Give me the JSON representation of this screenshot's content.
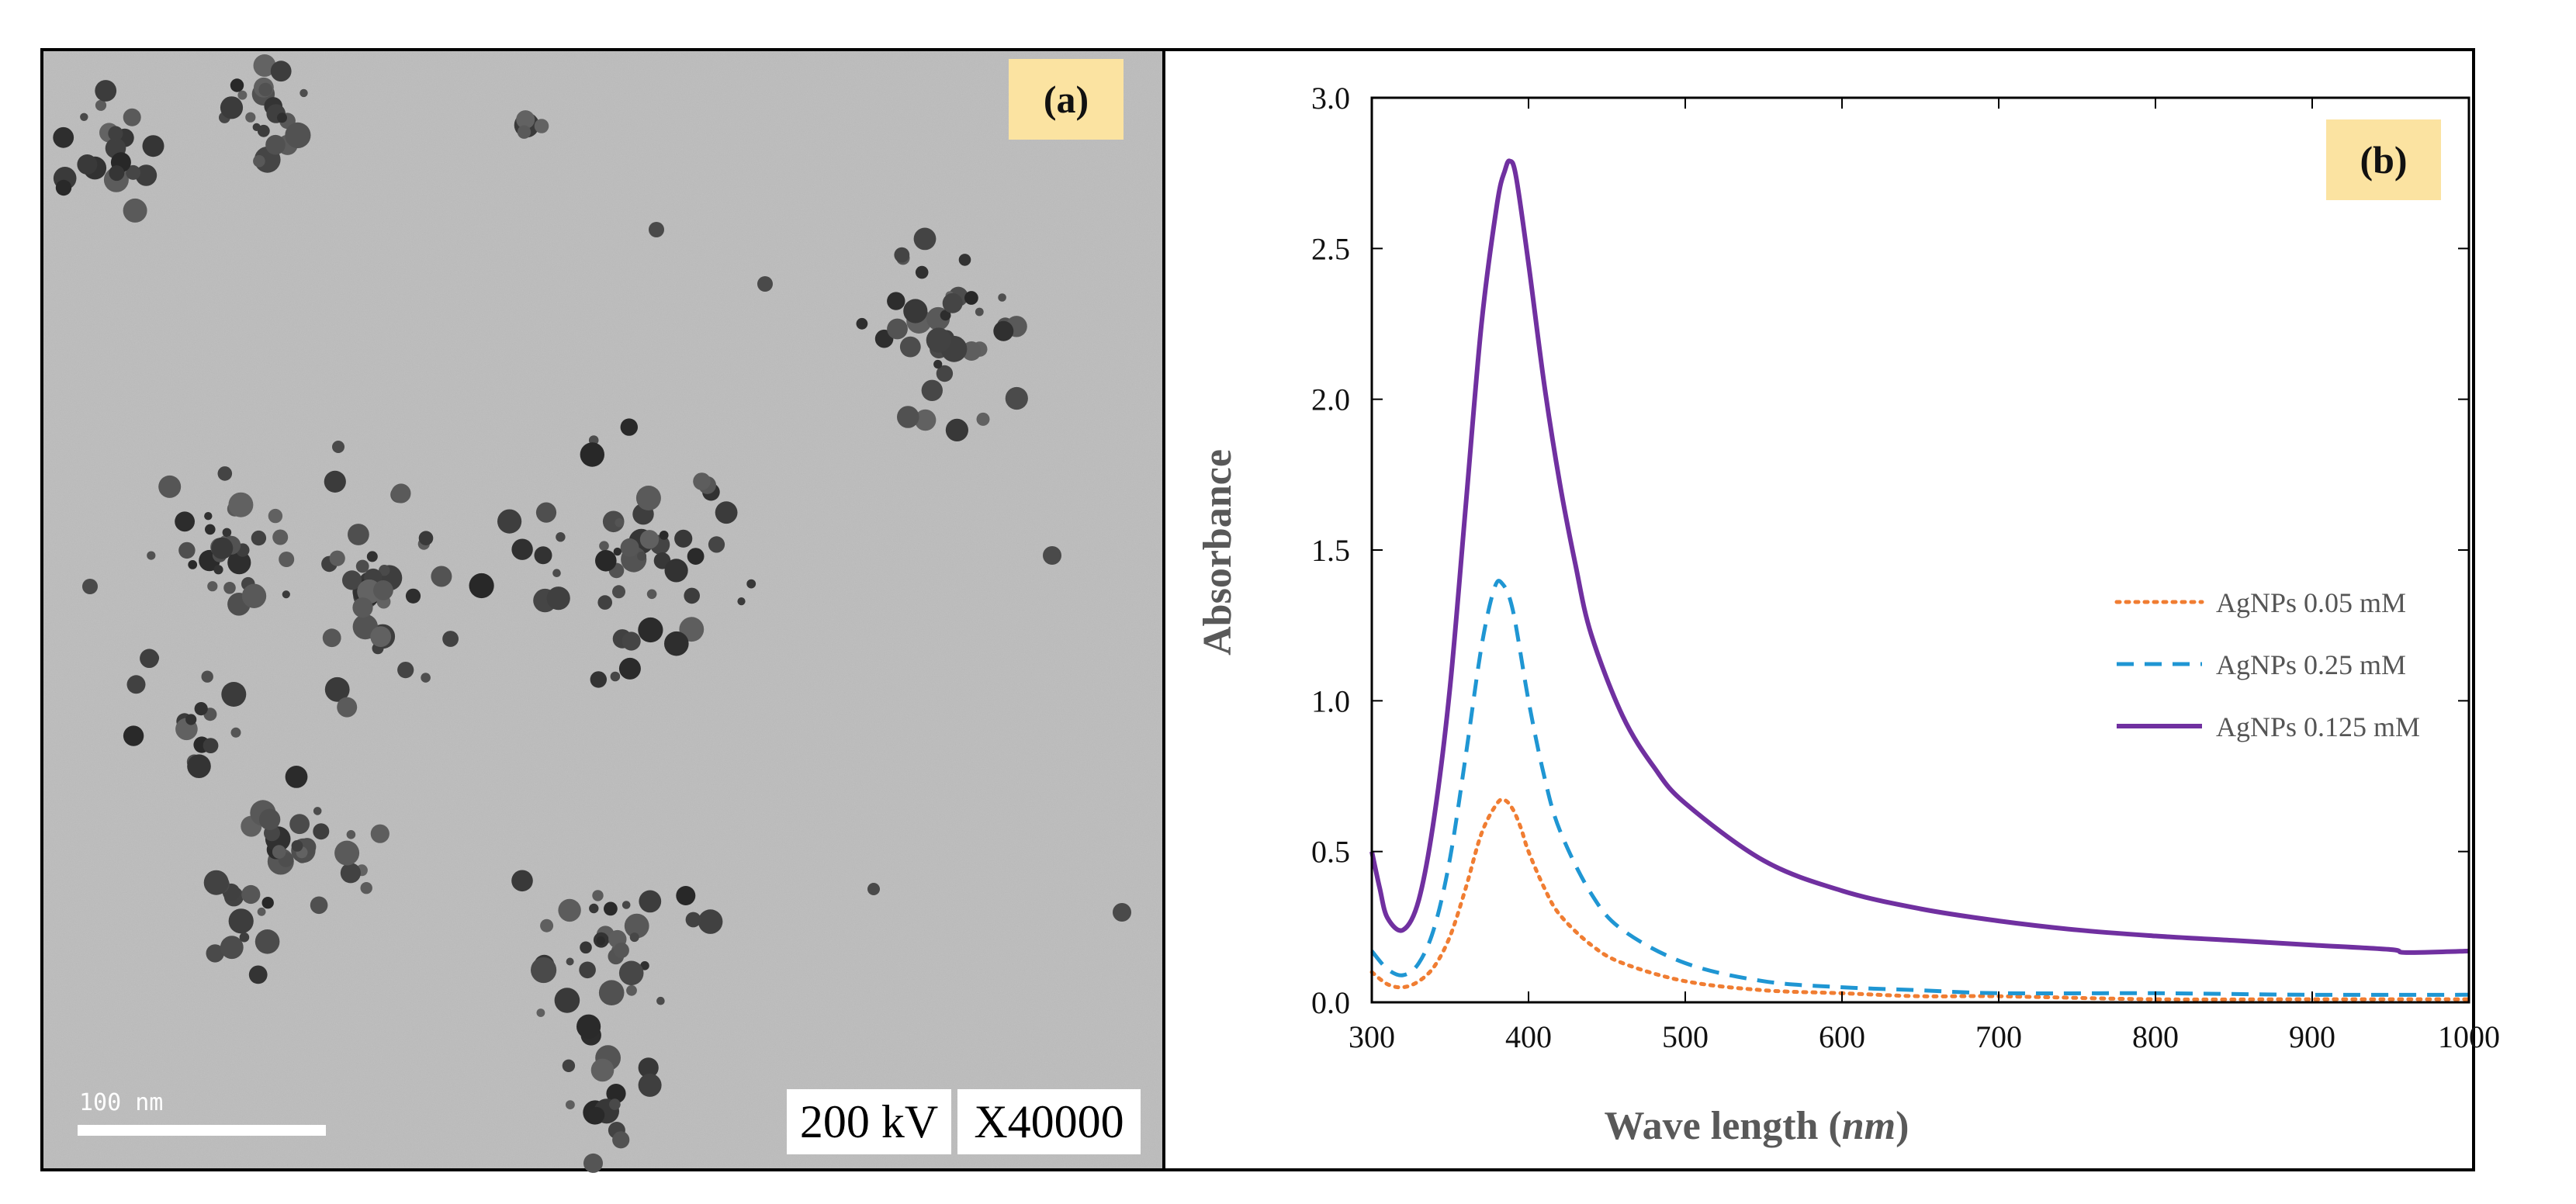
{
  "panel_a": {
    "label": "(a)",
    "scale_bar_text": "100 nm",
    "voltage": "200 kV",
    "magnification": "X40000"
  },
  "panel_b": {
    "label": "(b)"
  },
  "colors": {
    "background_tem": "#b6b6b6",
    "label_bg": "#fbe3a1",
    "series_005": "#f07d32",
    "series_025": "#1f96d3",
    "series_0125": "#7030a0"
  },
  "chart_data": {
    "type": "line",
    "title": "",
    "xlabel": "Wave length (nm)",
    "xlabel_main": "Wave length (",
    "xlabel_unit": "nm",
    "xlabel_close": ")",
    "ylabel": "Absorbance",
    "xlim": [
      300,
      1000
    ],
    "ylim": [
      0,
      3.0
    ],
    "xticks": [
      "300",
      "400",
      "500",
      "600",
      "700",
      "800",
      "900",
      "1000"
    ],
    "yticks": [
      "0.0",
      "0.5",
      "1.0",
      "1.5",
      "2.0",
      "2.5",
      "3.0"
    ],
    "legend_position": "center-right",
    "series": [
      {
        "name": "AgNPs 0.05 mM",
        "style": "dotted",
        "color": "#f07d32",
        "x": [
          300,
          310,
          320,
          330,
          340,
          350,
          360,
          370,
          380,
          385,
          390,
          395,
          400,
          410,
          420,
          440,
          460,
          500,
          550,
          600,
          650,
          700,
          800,
          900,
          1000
        ],
        "y": [
          0.1,
          0.06,
          0.05,
          0.07,
          0.12,
          0.22,
          0.38,
          0.56,
          0.66,
          0.67,
          0.64,
          0.58,
          0.5,
          0.38,
          0.29,
          0.19,
          0.13,
          0.07,
          0.04,
          0.03,
          0.02,
          0.02,
          0.01,
          0.01,
          0.01
        ]
      },
      {
        "name": "AgNPs 0.25 mM",
        "style": "dashed",
        "color": "#1f96d3",
        "x": [
          300,
          310,
          320,
          330,
          340,
          350,
          360,
          370,
          378,
          383,
          390,
          400,
          410,
          420,
          440,
          460,
          500,
          550,
          600,
          650,
          700,
          800,
          900,
          1000
        ],
        "y": [
          0.17,
          0.11,
          0.09,
          0.13,
          0.25,
          0.48,
          0.82,
          1.18,
          1.37,
          1.39,
          1.3,
          1.0,
          0.75,
          0.57,
          0.36,
          0.24,
          0.13,
          0.07,
          0.05,
          0.04,
          0.03,
          0.03,
          0.025,
          0.025
        ]
      },
      {
        "name": "AgNPs 0.125 mM",
        "style": "solid",
        "color": "#7030a0",
        "x": [
          300,
          305,
          310,
          320,
          330,
          340,
          350,
          360,
          370,
          380,
          385,
          388,
          392,
          400,
          410,
          420,
          430,
          440,
          460,
          480,
          500,
          550,
          600,
          650,
          700,
          750,
          800,
          850,
          900,
          950,
          960,
          1000
        ],
        "y": [
          0.5,
          0.38,
          0.28,
          0.24,
          0.34,
          0.62,
          1.05,
          1.65,
          2.25,
          2.65,
          2.76,
          2.79,
          2.74,
          2.45,
          2.05,
          1.72,
          1.45,
          1.22,
          0.95,
          0.78,
          0.66,
          0.47,
          0.37,
          0.31,
          0.27,
          0.24,
          0.22,
          0.205,
          0.19,
          0.175,
          0.165,
          0.17
        ]
      }
    ]
  }
}
